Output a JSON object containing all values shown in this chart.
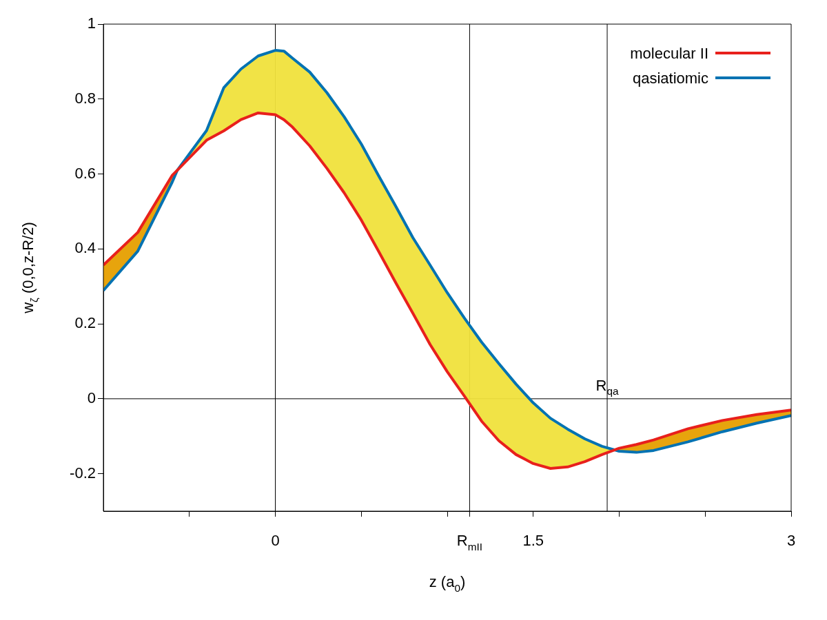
{
  "chart_data": {
    "type": "line",
    "xlabel": "z (a$_{0}$)",
    "ylabel": "w$_{ζ}$ (0,0,z-R/2)",
    "x": [
      -1,
      -0.8,
      -0.6,
      -0.57,
      -0.4,
      -0.3,
      -0.2,
      -0.1,
      0,
      0.05,
      0.1,
      0.2,
      0.3,
      0.4,
      0.5,
      0.6,
      0.7,
      0.8,
      0.9,
      1.0,
      1.1,
      1.2,
      1.3,
      1.4,
      1.5,
      1.6,
      1.7,
      1.8,
      1.9,
      2.0,
      2.1,
      2.2,
      2.4,
      2.6,
      2.8,
      3.0
    ],
    "series": [
      {
        "name": "molecular II",
        "color": "#e8201c",
        "values": [
          0.357,
          0.444,
          0.596,
          0.61,
          0.69,
          0.715,
          0.745,
          0.763,
          0.758,
          0.745,
          0.725,
          0.675,
          0.615,
          0.55,
          0.477,
          0.394,
          0.31,
          0.228,
          0.145,
          0.072,
          0.007,
          -0.06,
          -0.112,
          -0.149,
          -0.173,
          -0.186,
          -0.182,
          -0.168,
          -0.149,
          -0.132,
          -0.122,
          -0.11,
          -0.08,
          -0.058,
          -0.042,
          -0.03
        ]
      },
      {
        "name": "qasiatiomic",
        "color": "#0072b2",
        "values": [
          0.289,
          0.394,
          0.578,
          0.61,
          0.716,
          0.83,
          0.88,
          0.915,
          0.93,
          0.928,
          0.909,
          0.872,
          0.817,
          0.753,
          0.68,
          0.596,
          0.514,
          0.43,
          0.357,
          0.283,
          0.215,
          0.151,
          0.094,
          0.039,
          -0.011,
          -0.052,
          -0.081,
          -0.107,
          -0.127,
          -0.14,
          -0.143,
          -0.138,
          -0.115,
          -0.088,
          -0.065,
          -0.045
        ],
        "lower": [
          0.357,
          0.444,
          0.596,
          0.61,
          0.69,
          0.715,
          0.745,
          0.763,
          0.758,
          0.745,
          0.725,
          0.675,
          0.615,
          0.55,
          0.477,
          0.394,
          0.31,
          0.228,
          0.145,
          0.072,
          0.007,
          -0.06,
          -0.112,
          -0.149,
          -0.173,
          -0.186,
          -0.182,
          -0.168,
          -0.149,
          -0.132,
          -0.122,
          -0.11,
          -0.08,
          -0.058,
          -0.042,
          -0.03
        ],
        "upper": [
          0.289,
          0.394,
          0.578,
          0.61,
          0.716,
          0.83,
          0.88,
          0.915,
          0.93,
          0.928,
          0.909,
          0.872,
          0.817,
          0.753,
          0.68,
          0.596,
          0.514,
          0.43,
          0.357,
          0.283,
          0.215,
          0.151,
          0.094,
          0.039,
          -0.011,
          -0.052,
          -0.081,
          -0.107,
          -0.127,
          -0.14,
          -0.143,
          -0.138,
          -0.115,
          -0.088,
          -0.065,
          -0.045
        ]
      }
    ],
    "xlim": [
      -1,
      3
    ],
    "ylim": [
      -0.3,
      1
    ],
    "xticks": [
      {
        "value": -0.5,
        "label": null
      },
      0,
      {
        "value": 0.5,
        "label": null
      },
      {
        "value": 1,
        "label": null
      },
      {
        "value": 1.13,
        "label": "R$_{mII}$"
      },
      1.5,
      {
        "value": 2,
        "label": null
      },
      {
        "value": 2.5,
        "label": null
      },
      3
    ],
    "yticks": [
      -0.2,
      0,
      0.2,
      0.4,
      0.6,
      0.8,
      1
    ],
    "ref_lines": [
      {
        "axis": "x",
        "value": 0,
        "color": "#000000"
      },
      {
        "axis": "x",
        "value": 1.13,
        "color": "#000000"
      },
      {
        "axis": "x",
        "value": 1.93,
        "color": "#000000"
      },
      {
        "axis": "y",
        "value": 0,
        "color": "#000000"
      }
    ],
    "annotations": [
      {
        "text": "R$_{qa}$",
        "x": 1.93,
        "y": 0
      }
    ],
    "legend": "top right",
    "marker": "none",
    "line_style": "solid"
  }
}
